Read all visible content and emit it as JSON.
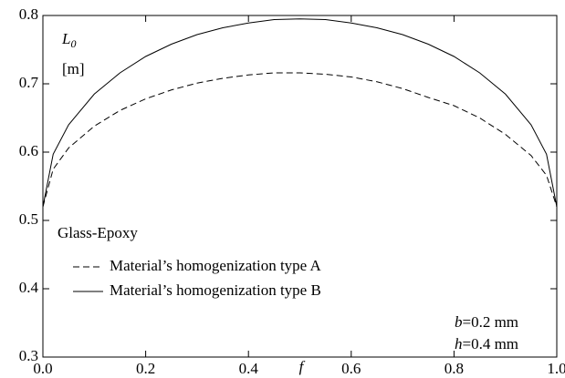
{
  "chart_data": {
    "type": "line",
    "xlabel": "f",
    "ylabel": "L",
    "ylabel_sub": "0",
    "yunit": "[m]",
    "annotation": "Glass-Epoxy",
    "params": [
      {
        "symbol": "b",
        "text": "=0.2 mm"
      },
      {
        "symbol": "h",
        "text": "=0.4 mm"
      }
    ],
    "x": [
      0,
      0.02,
      0.05,
      0.1,
      0.15,
      0.2,
      0.25,
      0.3,
      0.35,
      0.4,
      0.45,
      0.5,
      0.55,
      0.6,
      0.65,
      0.7,
      0.75,
      0.8,
      0.85,
      0.9,
      0.95,
      0.98,
      1
    ],
    "series": [
      {
        "name": "Material’s homogenization type A",
        "color": "#000000",
        "dash": true,
        "values": [
          0.52,
          0.575,
          0.606,
          0.638,
          0.661,
          0.678,
          0.691,
          0.701,
          0.708,
          0.713,
          0.716,
          0.716,
          0.714,
          0.71,
          0.703,
          0.693,
          0.68,
          0.668,
          0.65,
          0.626,
          0.595,
          0.566,
          0.52
        ]
      },
      {
        "name": "Material’s homogenization type B",
        "color": "#000000",
        "dash": false,
        "values": [
          0.52,
          0.597,
          0.64,
          0.685,
          0.716,
          0.74,
          0.758,
          0.772,
          0.782,
          0.789,
          0.794,
          0.795,
          0.794,
          0.789,
          0.782,
          0.772,
          0.758,
          0.74,
          0.716,
          0.685,
          0.64,
          0.597,
          0.52
        ]
      }
    ],
    "xlim": [
      0,
      1
    ],
    "ylim": [
      0.3,
      0.8
    ],
    "xticks": [
      {
        "value": 0,
        "label": "0.0"
      },
      0.2,
      0.4,
      0.6,
      0.8,
      {
        "value": 1,
        "label": "1.0"
      }
    ],
    "yticks": [
      0.3,
      0.4,
      0.5,
      0.6,
      0.7,
      0.8
    ]
  }
}
